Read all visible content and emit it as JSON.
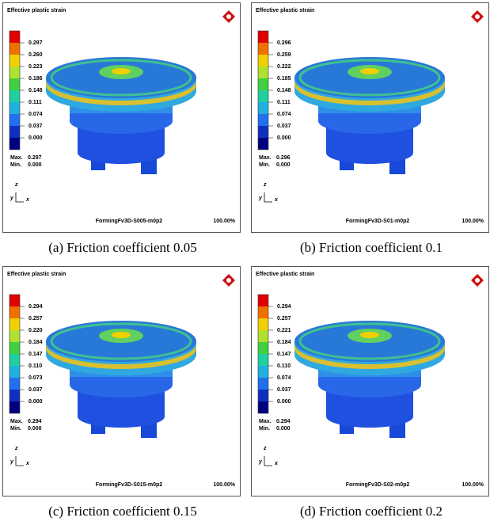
{
  "panels": [
    {
      "title": "Effective plastic strain",
      "legend": [
        "0.297",
        "0.260",
        "0.223",
        "0.186",
        "0.148",
        "0.111",
        "0.074",
        "0.037",
        "0.000"
      ],
      "max_label": "Max.",
      "max": "0.297",
      "min_label": "Min.",
      "min": "0.000",
      "axes": [
        "z",
        "y",
        "x"
      ],
      "file": "FormingFv3D-S005-m0p2",
      "zoom": "100.00%",
      "caption": "(a)  Friction  coefficient  0.05"
    },
    {
      "title": "Effective plastic strain",
      "legend": [
        "0.296",
        "0.259",
        "0.222",
        "0.185",
        "0.148",
        "0.111",
        "0.074",
        "0.037",
        "0.000"
      ],
      "max_label": "Max.",
      "max": "0.296",
      "min_label": "Min.",
      "min": "0.000",
      "axes": [
        "z",
        "y",
        "x"
      ],
      "file": "FormingFv3D-S01-m0p2",
      "zoom": "100.00%",
      "caption": "(b)  Friction  coefficient  0.1"
    },
    {
      "title": "Effective plastic strain",
      "legend": [
        "0.294",
        "0.257",
        "0.220",
        "0.184",
        "0.147",
        "0.110",
        "0.073",
        "0.037",
        "0.000"
      ],
      "max_label": "Max.",
      "max": "0.294",
      "min_label": "Min.",
      "min": "0.000",
      "axes": [
        "z",
        "y",
        "x"
      ],
      "file": "FormingFv3D-S015-m0p2",
      "zoom": "100.00%",
      "caption": "(c)  Friction  coefficient  0.15"
    },
    {
      "title": "Effective plastic strain",
      "legend": [
        "0.294",
        "0.257",
        "0.221",
        "0.184",
        "0.147",
        "0.110",
        "0.074",
        "0.037",
        "0.000"
      ],
      "max_label": "Max.",
      "max": "0.294",
      "min_label": "Min.",
      "min": "0.000",
      "axes": [
        "z",
        "y",
        "x"
      ],
      "file": "FormingFv3D-S02-m0p2",
      "zoom": "100.00%",
      "caption": "(d)  Friction  coefficient  0.2"
    }
  ]
}
